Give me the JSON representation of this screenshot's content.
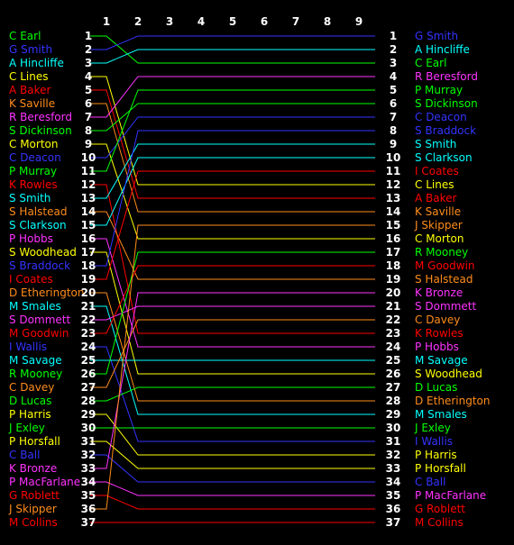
{
  "chart_data": {
    "type": "line",
    "title": "",
    "xlabel": "",
    "ylabel": "",
    "rounds": [
      "1",
      "2",
      "3",
      "4",
      "5",
      "6",
      "7",
      "8",
      "9"
    ],
    "ylim": [
      1,
      37
    ],
    "grid": false,
    "legend": "name labels at left and right ends of lines",
    "series": [
      {
        "name": "C Earl",
        "color": "#00ff00",
        "values": [
          1,
          3,
          3,
          3,
          3,
          3,
          3,
          3,
          3
        ]
      },
      {
        "name": "G Smith",
        "color": "#3333ff",
        "values": [
          2,
          1,
          1,
          1,
          1,
          1,
          1,
          1,
          1
        ]
      },
      {
        "name": "A Hincliffe",
        "color": "#00ffff",
        "values": [
          3,
          2,
          2,
          2,
          2,
          2,
          2,
          2,
          2
        ]
      },
      {
        "name": "C Lines",
        "color": "#ffff00",
        "values": [
          4,
          12,
          12,
          12,
          12,
          12,
          12,
          12,
          12
        ]
      },
      {
        "name": "A Baker",
        "color": "#ff0000",
        "values": [
          5,
          13,
          13,
          13,
          13,
          13,
          13,
          13,
          13
        ]
      },
      {
        "name": "K Saville",
        "color": "#ff8c1a",
        "values": [
          6,
          14,
          14,
          14,
          14,
          14,
          14,
          14,
          14
        ]
      },
      {
        "name": "R Beresford",
        "color": "#ff33ff",
        "values": [
          7,
          4,
          4,
          4,
          4,
          4,
          4,
          4,
          4
        ]
      },
      {
        "name": "S Dickinson",
        "color": "#00ff00",
        "values": [
          8,
          6,
          6,
          6,
          6,
          6,
          6,
          6,
          6
        ]
      },
      {
        "name": "C Morton",
        "color": "#ffff00",
        "values": [
          9,
          16,
          16,
          16,
          16,
          16,
          16,
          16,
          16
        ]
      },
      {
        "name": "C Deacon",
        "color": "#3333ff",
        "values": [
          10,
          7,
          7,
          7,
          7,
          7,
          7,
          7,
          7
        ]
      },
      {
        "name": "P Murray",
        "color": "#00ff00",
        "values": [
          11,
          5,
          5,
          5,
          5,
          5,
          5,
          5,
          5
        ]
      },
      {
        "name": "K Rowles",
        "color": "#ff0000",
        "values": [
          12,
          23,
          23,
          23,
          23,
          23,
          23,
          23,
          23
        ]
      },
      {
        "name": "S Smith",
        "color": "#00ffff",
        "values": [
          13,
          9,
          9,
          9,
          9,
          9,
          9,
          9,
          9
        ]
      },
      {
        "name": "S Halstead",
        "color": "#ff8c1a",
        "values": [
          14,
          19,
          19,
          19,
          19,
          19,
          19,
          19,
          19
        ]
      },
      {
        "name": "S Clarkson",
        "color": "#00ffff",
        "values": [
          15,
          10,
          10,
          10,
          10,
          10,
          10,
          10,
          10
        ]
      },
      {
        "name": "P Hobbs",
        "color": "#ff33ff",
        "values": [
          16,
          24,
          24,
          24,
          24,
          24,
          24,
          24,
          24
        ]
      },
      {
        "name": "S Woodhead",
        "color": "#ffff00",
        "values": [
          17,
          26,
          26,
          26,
          26,
          26,
          26,
          26,
          26
        ]
      },
      {
        "name": "S Braddock",
        "color": "#3333ff",
        "values": [
          18,
          8,
          8,
          8,
          8,
          8,
          8,
          8,
          8
        ]
      },
      {
        "name": "I Coates",
        "color": "#ff0000",
        "values": [
          19,
          11,
          11,
          11,
          11,
          11,
          11,
          11,
          11
        ]
      },
      {
        "name": "D Etherington",
        "color": "#ff8c1a",
        "values": [
          20,
          28,
          28,
          28,
          28,
          28,
          28,
          28,
          28
        ]
      },
      {
        "name": "M Smales",
        "color": "#00ffff",
        "values": [
          21,
          29,
          29,
          29,
          29,
          29,
          29,
          29,
          29
        ]
      },
      {
        "name": "S Dommett",
        "color": "#ff33ff",
        "values": [
          22,
          21,
          21,
          21,
          21,
          21,
          21,
          21,
          21
        ]
      },
      {
        "name": "M Goodwin",
        "color": "#ff0000",
        "values": [
          23,
          18,
          18,
          18,
          18,
          18,
          18,
          18,
          18
        ]
      },
      {
        "name": "I Wallis",
        "color": "#3333ff",
        "values": [
          24,
          31,
          31,
          31,
          31,
          31,
          31,
          31,
          31
        ]
      },
      {
        "name": "M Savage",
        "color": "#00ffff",
        "values": [
          25,
          25,
          25,
          25,
          25,
          25,
          25,
          25,
          25
        ]
      },
      {
        "name": "R Mooney",
        "color": "#00ff00",
        "values": [
          26,
          17,
          17,
          17,
          17,
          17,
          17,
          17,
          17
        ]
      },
      {
        "name": "C Davey",
        "color": "#ff8c1a",
        "values": [
          27,
          22,
          22,
          22,
          22,
          22,
          22,
          22,
          22
        ]
      },
      {
        "name": "D Lucas",
        "color": "#00ff00",
        "values": [
          28,
          27,
          27,
          27,
          27,
          27,
          27,
          27,
          27
        ]
      },
      {
        "name": "P Harris",
        "color": "#ffff00",
        "values": [
          29,
          32,
          32,
          32,
          32,
          32,
          32,
          32,
          32
        ]
      },
      {
        "name": "J Exley",
        "color": "#00ff00",
        "values": [
          30,
          30,
          30,
          30,
          30,
          30,
          30,
          30,
          30
        ]
      },
      {
        "name": "P Horsfall",
        "color": "#ffff00",
        "values": [
          31,
          33,
          33,
          33,
          33,
          33,
          33,
          33,
          33
        ]
      },
      {
        "name": "C Ball",
        "color": "#3333ff",
        "values": [
          32,
          34,
          34,
          34,
          34,
          34,
          34,
          34,
          34
        ]
      },
      {
        "name": "K Bronze",
        "color": "#ff33ff",
        "values": [
          33,
          20,
          20,
          20,
          20,
          20,
          20,
          20,
          20
        ]
      },
      {
        "name": "P MacFarlane",
        "color": "#ff33ff",
        "values": [
          34,
          35,
          35,
          35,
          35,
          35,
          35,
          35,
          35
        ]
      },
      {
        "name": "G Roblett",
        "color": "#ff0000",
        "values": [
          35,
          36,
          36,
          36,
          36,
          36,
          36,
          36,
          36
        ]
      },
      {
        "name": "J Skipper",
        "color": "#ff8c1a",
        "values": [
          36,
          15,
          15,
          15,
          15,
          15,
          15,
          15,
          15
        ]
      },
      {
        "name": "M Collins",
        "color": "#ff0000",
        "values": [
          37,
          37,
          37,
          37,
          37,
          37,
          37,
          37,
          37
        ]
      }
    ]
  }
}
